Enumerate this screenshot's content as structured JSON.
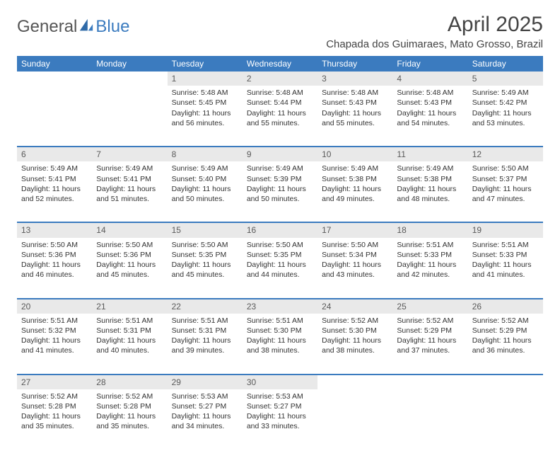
{
  "brand": {
    "part1": "General",
    "part2": "Blue"
  },
  "title": "April 2025",
  "location": "Chapada dos Guimaraes, Mato Grosso, Brazil",
  "colors": {
    "header_bg": "#3b7bbf",
    "header_text": "#ffffff",
    "daynum_bg": "#e9e9e9",
    "text": "#333333"
  },
  "dayHeaders": [
    "Sunday",
    "Monday",
    "Tuesday",
    "Wednesday",
    "Thursday",
    "Friday",
    "Saturday"
  ],
  "weeks": [
    [
      null,
      null,
      {
        "n": "1",
        "sr": "Sunrise: 5:48 AM",
        "ss": "Sunset: 5:45 PM",
        "dl": "Daylight: 11 hours and 56 minutes."
      },
      {
        "n": "2",
        "sr": "Sunrise: 5:48 AM",
        "ss": "Sunset: 5:44 PM",
        "dl": "Daylight: 11 hours and 55 minutes."
      },
      {
        "n": "3",
        "sr": "Sunrise: 5:48 AM",
        "ss": "Sunset: 5:43 PM",
        "dl": "Daylight: 11 hours and 55 minutes."
      },
      {
        "n": "4",
        "sr": "Sunrise: 5:48 AM",
        "ss": "Sunset: 5:43 PM",
        "dl": "Daylight: 11 hours and 54 minutes."
      },
      {
        "n": "5",
        "sr": "Sunrise: 5:49 AM",
        "ss": "Sunset: 5:42 PM",
        "dl": "Daylight: 11 hours and 53 minutes."
      }
    ],
    [
      {
        "n": "6",
        "sr": "Sunrise: 5:49 AM",
        "ss": "Sunset: 5:41 PM",
        "dl": "Daylight: 11 hours and 52 minutes."
      },
      {
        "n": "7",
        "sr": "Sunrise: 5:49 AM",
        "ss": "Sunset: 5:41 PM",
        "dl": "Daylight: 11 hours and 51 minutes."
      },
      {
        "n": "8",
        "sr": "Sunrise: 5:49 AM",
        "ss": "Sunset: 5:40 PM",
        "dl": "Daylight: 11 hours and 50 minutes."
      },
      {
        "n": "9",
        "sr": "Sunrise: 5:49 AM",
        "ss": "Sunset: 5:39 PM",
        "dl": "Daylight: 11 hours and 50 minutes."
      },
      {
        "n": "10",
        "sr": "Sunrise: 5:49 AM",
        "ss": "Sunset: 5:38 PM",
        "dl": "Daylight: 11 hours and 49 minutes."
      },
      {
        "n": "11",
        "sr": "Sunrise: 5:49 AM",
        "ss": "Sunset: 5:38 PM",
        "dl": "Daylight: 11 hours and 48 minutes."
      },
      {
        "n": "12",
        "sr": "Sunrise: 5:50 AM",
        "ss": "Sunset: 5:37 PM",
        "dl": "Daylight: 11 hours and 47 minutes."
      }
    ],
    [
      {
        "n": "13",
        "sr": "Sunrise: 5:50 AM",
        "ss": "Sunset: 5:36 PM",
        "dl": "Daylight: 11 hours and 46 minutes."
      },
      {
        "n": "14",
        "sr": "Sunrise: 5:50 AM",
        "ss": "Sunset: 5:36 PM",
        "dl": "Daylight: 11 hours and 45 minutes."
      },
      {
        "n": "15",
        "sr": "Sunrise: 5:50 AM",
        "ss": "Sunset: 5:35 PM",
        "dl": "Daylight: 11 hours and 45 minutes."
      },
      {
        "n": "16",
        "sr": "Sunrise: 5:50 AM",
        "ss": "Sunset: 5:35 PM",
        "dl": "Daylight: 11 hours and 44 minutes."
      },
      {
        "n": "17",
        "sr": "Sunrise: 5:50 AM",
        "ss": "Sunset: 5:34 PM",
        "dl": "Daylight: 11 hours and 43 minutes."
      },
      {
        "n": "18",
        "sr": "Sunrise: 5:51 AM",
        "ss": "Sunset: 5:33 PM",
        "dl": "Daylight: 11 hours and 42 minutes."
      },
      {
        "n": "19",
        "sr": "Sunrise: 5:51 AM",
        "ss": "Sunset: 5:33 PM",
        "dl": "Daylight: 11 hours and 41 minutes."
      }
    ],
    [
      {
        "n": "20",
        "sr": "Sunrise: 5:51 AM",
        "ss": "Sunset: 5:32 PM",
        "dl": "Daylight: 11 hours and 41 minutes."
      },
      {
        "n": "21",
        "sr": "Sunrise: 5:51 AM",
        "ss": "Sunset: 5:31 PM",
        "dl": "Daylight: 11 hours and 40 minutes."
      },
      {
        "n": "22",
        "sr": "Sunrise: 5:51 AM",
        "ss": "Sunset: 5:31 PM",
        "dl": "Daylight: 11 hours and 39 minutes."
      },
      {
        "n": "23",
        "sr": "Sunrise: 5:51 AM",
        "ss": "Sunset: 5:30 PM",
        "dl": "Daylight: 11 hours and 38 minutes."
      },
      {
        "n": "24",
        "sr": "Sunrise: 5:52 AM",
        "ss": "Sunset: 5:30 PM",
        "dl": "Daylight: 11 hours and 38 minutes."
      },
      {
        "n": "25",
        "sr": "Sunrise: 5:52 AM",
        "ss": "Sunset: 5:29 PM",
        "dl": "Daylight: 11 hours and 37 minutes."
      },
      {
        "n": "26",
        "sr": "Sunrise: 5:52 AM",
        "ss": "Sunset: 5:29 PM",
        "dl": "Daylight: 11 hours and 36 minutes."
      }
    ],
    [
      {
        "n": "27",
        "sr": "Sunrise: 5:52 AM",
        "ss": "Sunset: 5:28 PM",
        "dl": "Daylight: 11 hours and 35 minutes."
      },
      {
        "n": "28",
        "sr": "Sunrise: 5:52 AM",
        "ss": "Sunset: 5:28 PM",
        "dl": "Daylight: 11 hours and 35 minutes."
      },
      {
        "n": "29",
        "sr": "Sunrise: 5:53 AM",
        "ss": "Sunset: 5:27 PM",
        "dl": "Daylight: 11 hours and 34 minutes."
      },
      {
        "n": "30",
        "sr": "Sunrise: 5:53 AM",
        "ss": "Sunset: 5:27 PM",
        "dl": "Daylight: 11 hours and 33 minutes."
      },
      null,
      null,
      null
    ]
  ]
}
